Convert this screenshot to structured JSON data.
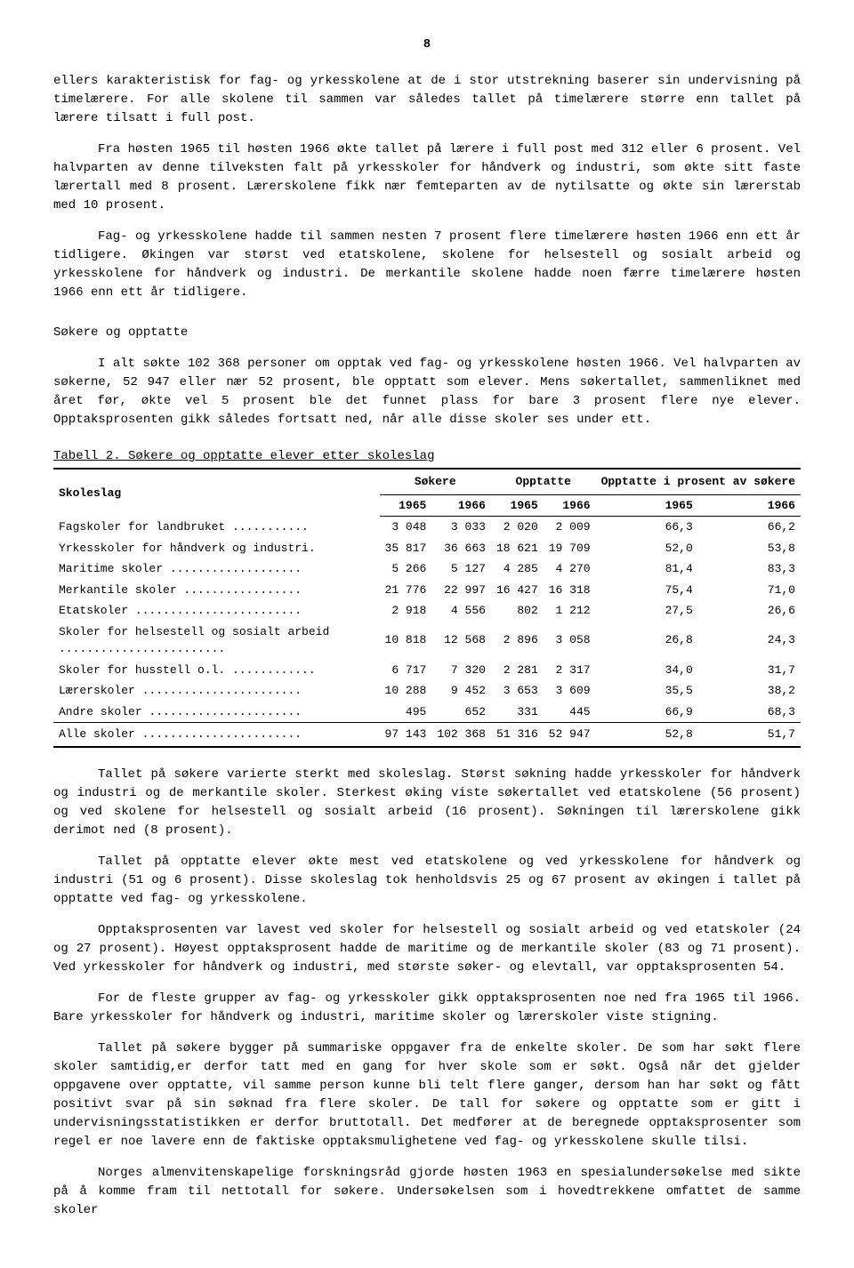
{
  "page_number": "8",
  "paragraphs": {
    "p1": "ellers karakteristisk for fag- og yrkesskolene at de i stor utstrekning baserer sin undervisning på timelærere. For alle skolene til sammen var således tallet på timelærere større enn tallet på lærere tilsatt i full post.",
    "p2": "Fra høsten 1965 til høsten 1966 økte tallet på lærere i full post med 312 eller 6 prosent. Vel halvparten av denne tilveksten falt på yrkesskoler for håndverk og industri, som økte sitt faste lærertall med 8 prosent. Lærerskolene fikk nær femteparten av de nytilsatte og økte sin lærerstab med 10 prosent.",
    "p3": "Fag- og yrkesskolene hadde til sammen nesten 7 prosent flere timelærere høsten 1966 enn ett år tidligere. Økingen var størst ved etatskolene, skolene for helsestell og sosialt arbeid og yrkesskolene for håndverk og industri. De merkantile skolene hadde noen færre timelærere høsten 1966 enn ett år tidligere.",
    "heading1": "Søkere og opptatte",
    "p4": "I alt søkte 102 368 personer om opptak ved fag- og yrkesskolene høsten 1966. Vel halvparten av søkerne, 52 947 eller nær 52 prosent, ble opptatt som elever. Mens søkertallet, sammenliknet med året før, økte vel 5 prosent ble det funnet plass for bare 3 prosent flere nye elever. Opptaksprosenten gikk således fortsatt ned, når alle disse skoler ses under ett.",
    "p5": "Tallet på søkere varierte sterkt med skoleslag. Størst søkning hadde yrkesskoler for håndverk og industri og de merkantile skoler. Sterkest øking viste søkertallet ved etatskolene (56 prosent) og ved skolene for helsestell og sosialt arbeid (16 prosent). Søkningen til lærerskolene gikk derimot ned (8 prosent).",
    "p6": "Tallet på opptatte elever økte mest ved etatskolene og ved yrkesskolene for håndverk og industri (51 og 6 prosent). Disse skoleslag tok henholdsvis 25 og 67 prosent av økingen i tallet på opptatte ved fag- og yrkesskolene.",
    "p7": "Opptaksprosenten var lavest ved skoler for helsestell og sosialt arbeid og ved etatskoler (24 og 27 prosent). Høyest opptaksprosent hadde de maritime og de merkantile skoler (83 og 71 prosent). Ved yrkesskoler for håndverk og industri, med største søker- og elevtall, var opptaksprosenten 54.",
    "p8": "For de fleste grupper av fag- og yrkesskoler gikk opptaksprosenten noe ned fra 1965 til 1966. Bare yrkesskoler for håndverk og industri, maritime skoler og lærerskoler viste stigning.",
    "p9": "Tallet på søkere bygger på summariske oppgaver fra de enkelte skoler. De som har søkt flere skoler samtidig,er derfor tatt med en gang for hver skole som er søkt. Også når det gjelder oppgavene over opptatte, vil samme person kunne bli telt flere ganger, dersom han har søkt og fått positivt svar på sin søknad fra flere skoler. De tall for søkere og opptatte som er gitt i undervisningsstatistikken er derfor bruttotall. Det medfører at de beregnede opptaksprosenter som regel er noe lavere enn de faktiske opptaksmulighetene ved fag- og yrkesskolene skulle tilsi.",
    "p10": "Norges almenvitenskapelige forskningsråd gjorde høsten 1963 en spesialundersøkelse med sikte på å komme fram til nettotall for søkere. Undersøkelsen som i hovedtrekkene omfattet de samme skoler"
  },
  "table": {
    "caption": "Tabell 2. Søkere og opptatte elever etter skoleslag",
    "col_label": "Skoleslag",
    "group_headers": [
      "Søkere",
      "Opptatte",
      "Opptatte i prosent av søkere"
    ],
    "year_headers": [
      "1965",
      "1966",
      "1965",
      "1966",
      "1965",
      "1966"
    ],
    "rows": [
      {
        "label": "Fagskoler for landbruket ...........",
        "v": [
          "3 048",
          "3 033",
          "2 020",
          "2 009",
          "66,3",
          "66,2"
        ]
      },
      {
        "label": "Yrkesskoler for håndverk og industri.",
        "v": [
          "35 817",
          "36 663",
          "18 621",
          "19 709",
          "52,0",
          "53,8"
        ]
      },
      {
        "label": "Maritime skoler ...................",
        "v": [
          "5 266",
          "5 127",
          "4 285",
          "4 270",
          "81,4",
          "83,3"
        ]
      },
      {
        "label": "Merkantile skoler .................",
        "v": [
          "21 776",
          "22 997",
          "16 427",
          "16 318",
          "75,4",
          "71,0"
        ]
      },
      {
        "label": "Etatskoler ........................",
        "v": [
          "2 918",
          "4 556",
          "802",
          "1 212",
          "27,5",
          "26,6"
        ]
      },
      {
        "label": "Skoler for helsestell og sosialt arbeid ........................",
        "v": [
          "10 818",
          "12 568",
          "2 896",
          "3 058",
          "26,8",
          "24,3"
        ]
      },
      {
        "label": "Skoler for husstell o.l. ............",
        "v": [
          "6 717",
          "7 320",
          "2 281",
          "2 317",
          "34,0",
          "31,7"
        ]
      },
      {
        "label": "Lærerskoler .......................",
        "v": [
          "10 288",
          "9 452",
          "3 653",
          "3 609",
          "35,5",
          "38,2"
        ]
      },
      {
        "label": "Andre skoler ......................",
        "v": [
          "495",
          "652",
          "331",
          "445",
          "66,9",
          "68,3"
        ]
      }
    ],
    "total": {
      "label": "Alle skoler .......................",
      "v": [
        "97 143",
        "102 368",
        "51 316",
        "52 947",
        "52,8",
        "51,7"
      ]
    }
  }
}
